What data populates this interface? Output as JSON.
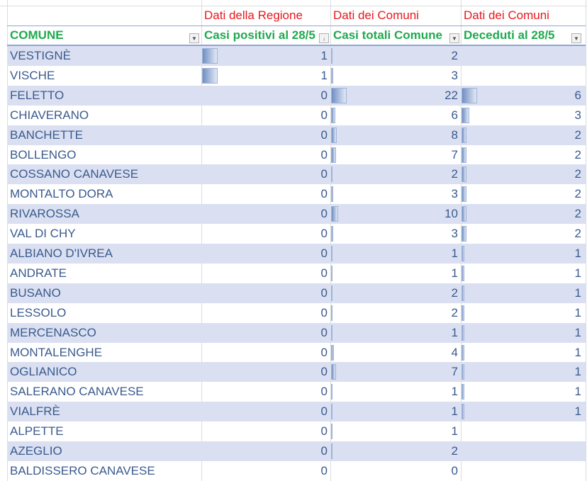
{
  "group_headers": [
    "Dati della Regione",
    "Dati dei Comuni",
    "Dati dei Comuni"
  ],
  "columns": [
    "COMUNE",
    "Casi positivi al 28/5",
    "Casi totali Comune",
    "Deceduti al 28/5"
  ],
  "colors": {
    "group_header": "#e8181e",
    "column_header": "#1faa4e",
    "row_text": "#3a5a8e",
    "row_shade": "#dae0f1",
    "data_bar": "#6f8fc3"
  },
  "icons": {
    "filter": "filter-dropdown-icon",
    "sort": "sort-descending-filter-icon"
  },
  "rows": [
    [
      "VESTIGNÈ",
      "1",
      "2",
      ""
    ],
    [
      "VISCHE",
      "1",
      "3",
      ""
    ],
    [
      "FELETTO",
      "0",
      "22",
      "6"
    ],
    [
      "CHIAVERANO",
      "0",
      "6",
      "3"
    ],
    [
      "BANCHETTE",
      "0",
      "8",
      "2"
    ],
    [
      "BOLLENGO",
      "0",
      "7",
      "2"
    ],
    [
      "COSSANO CANAVESE",
      "0",
      "2",
      "2"
    ],
    [
      "MONTALTO DORA",
      "0",
      "3",
      "2"
    ],
    [
      "RIVAROSSA",
      "0",
      "10",
      "2"
    ],
    [
      "VAL DI CHY",
      "0",
      "3",
      "2"
    ],
    [
      "ALBIANO D'IVREA",
      "0",
      "1",
      "1"
    ],
    [
      "ANDRATE",
      "0",
      "1",
      "1"
    ],
    [
      "BUSANO",
      "0",
      "2",
      "1"
    ],
    [
      "LESSOLO",
      "0",
      "2",
      "1"
    ],
    [
      "MERCENASCO",
      "0",
      "1",
      "1"
    ],
    [
      "MONTALENGHE",
      "0",
      "4",
      "1"
    ],
    [
      "OGLIANICO",
      "0",
      "7",
      "1"
    ],
    [
      "SALERANO CANAVESE",
      "0",
      "1",
      "1"
    ],
    [
      "VIALFRÈ",
      "0",
      "1",
      "1"
    ],
    [
      "ALPETTE",
      "0",
      "1",
      ""
    ],
    [
      "AZEGLIO",
      "0",
      "2",
      ""
    ],
    [
      "BALDISSERO CANAVESE",
      "0",
      "0",
      ""
    ]
  ]
}
